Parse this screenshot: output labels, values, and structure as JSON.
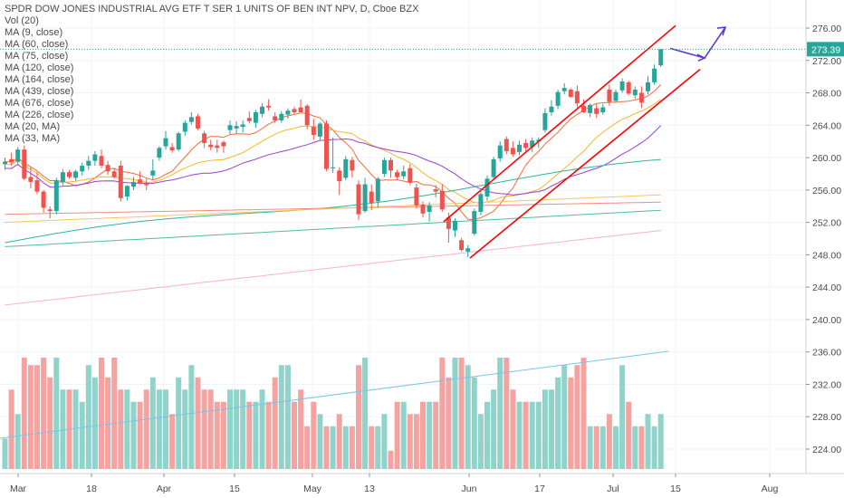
{
  "legend": {
    "title": "SPDR DOW JONES INDUSTRIAL AVG ETF T SER 1 UNITS OF BEN INT NPV, D, Cboe BZX",
    "items": [
      "Vol (20)",
      "MA (9, close)",
      "MA (60, close)",
      "MA (75, close)",
      "MA (120, close)",
      "MA (164, close)",
      "MA (439, close)",
      "MA (676, close)",
      "MA (226, close)",
      "MA (20, MA)",
      "MA (33, MA)"
    ]
  },
  "last_price": {
    "value": 273.39,
    "label": "273.39",
    "color": "#26a69a"
  },
  "colors": {
    "up": "#26a69a",
    "down": "#ef5350",
    "vol_up": "#8fd3cb",
    "vol_down": "#f5a3a1",
    "drawing": "#ff0000",
    "arrow": "#5b3ccf"
  },
  "chart_data": {
    "type": "candlestick",
    "y_axis": {
      "ticks": [
        224,
        228,
        232,
        236,
        240,
        244,
        248,
        252,
        256,
        260,
        264,
        268,
        272,
        276
      ],
      "labels": [
        "224.00",
        "228.00",
        "232.00",
        "236.00",
        "240.00",
        "244.00",
        "248.00",
        "252.00",
        "256.00",
        "260.00",
        "264.00",
        "268.00",
        "272.00",
        "276.00"
      ],
      "range": [
        221.5,
        278
      ]
    },
    "x_axis": {
      "labels": [
        "Mar",
        "18",
        "Apr",
        "15",
        "May",
        "13",
        "Jun",
        "17",
        "Jul",
        "15",
        "Aug"
      ]
    },
    "candles": [
      {
        "o": 259.2,
        "h": 260.0,
        "l": 258.5,
        "c": 259.5
      },
      {
        "o": 259.8,
        "h": 260.6,
        "l": 259.0,
        "c": 259.4
      },
      {
        "o": 259.5,
        "h": 261.3,
        "l": 259.2,
        "c": 261.0
      },
      {
        "o": 261.0,
        "h": 261.5,
        "l": 257.2,
        "c": 257.4
      },
      {
        "o": 257.6,
        "h": 258.8,
        "l": 256.2,
        "c": 257.0
      },
      {
        "o": 257.2,
        "h": 258.2,
        "l": 255.5,
        "c": 255.8
      },
      {
        "o": 255.8,
        "h": 256.0,
        "l": 253.2,
        "c": 253.8
      },
      {
        "o": 253.6,
        "h": 254.0,
        "l": 252.5,
        "c": 253.4
      },
      {
        "o": 253.4,
        "h": 257.5,
        "l": 253.0,
        "c": 257.2
      },
      {
        "o": 257.0,
        "h": 258.6,
        "l": 256.6,
        "c": 258.2
      },
      {
        "o": 258.2,
        "h": 258.5,
        "l": 257.4,
        "c": 257.6
      },
      {
        "o": 257.5,
        "h": 258.5,
        "l": 257.1,
        "c": 258.3
      },
      {
        "o": 258.3,
        "h": 259.4,
        "l": 257.8,
        "c": 259.0
      },
      {
        "o": 259.0,
        "h": 260.2,
        "l": 258.5,
        "c": 259.6
      },
      {
        "o": 259.6,
        "h": 260.8,
        "l": 259.0,
        "c": 260.4
      },
      {
        "o": 260.2,
        "h": 261.0,
        "l": 258.7,
        "c": 259.0
      },
      {
        "o": 259.1,
        "h": 259.6,
        "l": 257.9,
        "c": 258.3
      },
      {
        "o": 258.3,
        "h": 258.7,
        "l": 257.4,
        "c": 257.6
      },
      {
        "o": 259.0,
        "h": 259.6,
        "l": 254.6,
        "c": 255.0
      },
      {
        "o": 255.2,
        "h": 256.6,
        "l": 254.7,
        "c": 256.5
      },
      {
        "o": 256.4,
        "h": 257.6,
        "l": 256.0,
        "c": 257.0
      },
      {
        "o": 257.3,
        "h": 258.3,
        "l": 256.7,
        "c": 256.8
      },
      {
        "o": 256.9,
        "h": 257.4,
        "l": 256.0,
        "c": 256.6
      },
      {
        "o": 257.8,
        "h": 259.8,
        "l": 257.3,
        "c": 258.4
      },
      {
        "o": 260.0,
        "h": 261.4,
        "l": 259.6,
        "c": 261.2
      },
      {
        "o": 261.4,
        "h": 263.3,
        "l": 261.0,
        "c": 262.4
      },
      {
        "o": 261.3,
        "h": 261.8,
        "l": 260.6,
        "c": 260.9
      },
      {
        "o": 261.0,
        "h": 263.2,
        "l": 260.8,
        "c": 263.0
      },
      {
        "o": 263.2,
        "h": 264.6,
        "l": 262.7,
        "c": 264.3
      },
      {
        "o": 264.4,
        "h": 265.6,
        "l": 264.1,
        "c": 265.0
      },
      {
        "o": 265.1,
        "h": 265.4,
        "l": 263.4,
        "c": 263.6
      },
      {
        "o": 263.0,
        "h": 263.3,
        "l": 261.2,
        "c": 261.8
      },
      {
        "o": 261.6,
        "h": 262.2,
        "l": 260.9,
        "c": 261.3
      },
      {
        "o": 261.5,
        "h": 262.2,
        "l": 260.6,
        "c": 261.2
      },
      {
        "o": 261.9,
        "h": 262.1,
        "l": 260.6,
        "c": 261.4
      },
      {
        "o": 263.4,
        "h": 264.6,
        "l": 262.9,
        "c": 264.0
      },
      {
        "o": 263.6,
        "h": 264.5,
        "l": 263.0,
        "c": 263.9
      },
      {
        "o": 263.8,
        "h": 264.6,
        "l": 263.1,
        "c": 264.1
      },
      {
        "o": 264.9,
        "h": 265.7,
        "l": 264.2,
        "c": 264.5
      },
      {
        "o": 264.3,
        "h": 265.9,
        "l": 263.7,
        "c": 265.6
      },
      {
        "o": 265.4,
        "h": 266.7,
        "l": 265.0,
        "c": 266.3
      },
      {
        "o": 266.4,
        "h": 267.2,
        "l": 265.8,
        "c": 266.2
      },
      {
        "o": 265.1,
        "h": 265.6,
        "l": 264.3,
        "c": 264.6
      },
      {
        "o": 264.6,
        "h": 265.7,
        "l": 264.3,
        "c": 265.4
      },
      {
        "o": 265.3,
        "h": 266.1,
        "l": 264.8,
        "c": 265.8
      },
      {
        "o": 266.0,
        "h": 266.3,
        "l": 265.4,
        "c": 265.6
      },
      {
        "o": 266.2,
        "h": 267.2,
        "l": 265.6,
        "c": 265.6
      },
      {
        "o": 266.4,
        "h": 266.6,
        "l": 263.5,
        "c": 264.0
      },
      {
        "o": 263.8,
        "h": 264.8,
        "l": 262.2,
        "c": 262.8
      },
      {
        "o": 262.6,
        "h": 264.4,
        "l": 262.2,
        "c": 264.2
      },
      {
        "o": 264.2,
        "h": 264.6,
        "l": 258.3,
        "c": 258.6
      },
      {
        "o": 258.7,
        "h": 262.5,
        "l": 258.1,
        "c": 258.8
      },
      {
        "o": 258.4,
        "h": 258.8,
        "l": 255.4,
        "c": 257.1
      },
      {
        "o": 257.5,
        "h": 260.2,
        "l": 257.2,
        "c": 259.8
      },
      {
        "o": 259.7,
        "h": 260.1,
        "l": 257.5,
        "c": 258.4
      },
      {
        "o": 256.7,
        "h": 257.2,
        "l": 252.3,
        "c": 253.0
      },
      {
        "o": 253.4,
        "h": 257.5,
        "l": 253.2,
        "c": 256.7
      },
      {
        "o": 255.8,
        "h": 256.7,
        "l": 253.5,
        "c": 254.4
      },
      {
        "o": 254.6,
        "h": 257.6,
        "l": 253.8,
        "c": 257.4
      },
      {
        "o": 258.0,
        "h": 260.0,
        "l": 257.6,
        "c": 259.7
      },
      {
        "o": 259.7,
        "h": 260.0,
        "l": 257.5,
        "c": 258.4
      },
      {
        "o": 258.2,
        "h": 258.5,
        "l": 257.2,
        "c": 257.6
      },
      {
        "o": 257.7,
        "h": 259.0,
        "l": 257.3,
        "c": 258.3
      },
      {
        "o": 258.7,
        "h": 259.2,
        "l": 256.6,
        "c": 256.9
      },
      {
        "o": 256.3,
        "h": 256.8,
        "l": 253.7,
        "c": 254.1
      },
      {
        "o": 254.2,
        "h": 254.6,
        "l": 252.6,
        "c": 253.1
      },
      {
        "o": 253.3,
        "h": 254.5,
        "l": 252.1,
        "c": 254.1
      },
      {
        "o": 256.1,
        "h": 256.6,
        "l": 255.1,
        "c": 255.8
      },
      {
        "o": 255.9,
        "h": 256.7,
        "l": 253.3,
        "c": 253.6
      },
      {
        "o": 252.6,
        "h": 253.2,
        "l": 249.5,
        "c": 251.2
      },
      {
        "o": 251.0,
        "h": 252.5,
        "l": 250.2,
        "c": 252.2
      },
      {
        "o": 249.8,
        "h": 250.1,
        "l": 248.4,
        "c": 248.6
      },
      {
        "o": 248.4,
        "h": 249.2,
        "l": 247.7,
        "c": 248.8
      },
      {
        "o": 250.6,
        "h": 253.7,
        "l": 250.4,
        "c": 253.4
      },
      {
        "o": 253.3,
        "h": 255.9,
        "l": 252.9,
        "c": 255.5
      },
      {
        "o": 255.2,
        "h": 257.8,
        "l": 254.7,
        "c": 257.4
      },
      {
        "o": 257.6,
        "h": 260.1,
        "l": 257.4,
        "c": 259.8
      },
      {
        "o": 259.9,
        "h": 262.0,
        "l": 259.5,
        "c": 261.5
      },
      {
        "o": 262.3,
        "h": 262.6,
        "l": 260.4,
        "c": 260.8
      },
      {
        "o": 261.2,
        "h": 262.0,
        "l": 260.1,
        "c": 260.4
      },
      {
        "o": 260.7,
        "h": 262.1,
        "l": 260.3,
        "c": 261.6
      },
      {
        "o": 261.8,
        "h": 262.3,
        "l": 260.8,
        "c": 261.2
      },
      {
        "o": 261.3,
        "h": 262.5,
        "l": 260.7,
        "c": 262.1
      },
      {
        "o": 262.0,
        "h": 262.5,
        "l": 261.2,
        "c": 262.2
      },
      {
        "o": 263.4,
        "h": 266.1,
        "l": 263.1,
        "c": 265.5
      },
      {
        "o": 265.6,
        "h": 267.1,
        "l": 265.2,
        "c": 266.3
      },
      {
        "o": 266.4,
        "h": 268.4,
        "l": 266.0,
        "c": 268.1
      },
      {
        "o": 268.2,
        "h": 269.2,
        "l": 267.8,
        "c": 268.6
      },
      {
        "o": 268.4,
        "h": 268.6,
        "l": 267.4,
        "c": 267.5
      },
      {
        "o": 268.2,
        "h": 268.9,
        "l": 266.2,
        "c": 266.7
      },
      {
        "o": 266.4,
        "h": 267.2,
        "l": 265.5,
        "c": 265.6
      },
      {
        "o": 265.5,
        "h": 266.7,
        "l": 265.0,
        "c": 266.5
      },
      {
        "o": 266.1,
        "h": 266.6,
        "l": 264.9,
        "c": 265.4
      },
      {
        "o": 265.6,
        "h": 266.6,
        "l": 265.3,
        "c": 266.2
      },
      {
        "o": 268.4,
        "h": 269.0,
        "l": 266.4,
        "c": 266.9
      },
      {
        "o": 267.0,
        "h": 268.4,
        "l": 266.8,
        "c": 268.1
      },
      {
        "o": 268.3,
        "h": 269.8,
        "l": 268.0,
        "c": 269.4
      },
      {
        "o": 269.3,
        "h": 269.5,
        "l": 267.7,
        "c": 267.9
      },
      {
        "o": 267.7,
        "h": 268.8,
        "l": 267.3,
        "c": 268.4
      },
      {
        "o": 268.0,
        "h": 268.8,
        "l": 266.1,
        "c": 266.8
      },
      {
        "o": 268.2,
        "h": 270.1,
        "l": 267.8,
        "c": 269.3
      },
      {
        "o": 269.3,
        "h": 271.5,
        "l": 269.0,
        "c": 271.0
      },
      {
        "o": 271.4,
        "h": 273.4,
        "l": 271.2,
        "c": 273.4
      }
    ],
    "volume_relative": [
      25,
      29,
      27,
      33,
      31,
      31,
      33,
      30,
      34,
      29,
      29,
      29,
      28,
      31,
      30,
      32,
      30,
      33,
      29,
      29,
      28,
      28,
      29,
      30,
      29,
      29,
      27,
      30,
      29,
      31,
      30,
      29,
      29,
      28,
      28,
      29,
      29,
      29,
      28,
      28,
      29,
      28,
      30,
      31,
      31,
      28,
      29,
      26,
      28,
      27,
      26,
      26,
      27,
      26,
      26,
      31,
      34,
      26,
      26,
      27,
      24,
      28,
      28,
      27,
      27,
      28,
      28,
      28,
      32,
      30,
      33,
      34,
      31,
      30,
      27,
      28,
      29,
      32,
      32,
      29,
      28,
      28,
      28,
      28,
      29,
      29,
      30,
      31,
      30,
      31,
      33,
      26,
      26,
      26,
      27,
      26,
      31,
      28,
      26,
      26,
      27,
      26,
      27,
      28
    ],
    "drawings": {
      "upper_channel_line": [
        [
          490,
          252.1
        ],
        [
          746,
          276.3
        ]
      ],
      "lower_channel_line": [
        [
          519,
          247.6
        ],
        [
          773,
          270.9
        ]
      ],
      "projection_arrow": [
        [
          740,
          273.5
        ],
        [
          778,
          272.3
        ],
        [
          801,
          276.1
        ]
      ]
    }
  }
}
